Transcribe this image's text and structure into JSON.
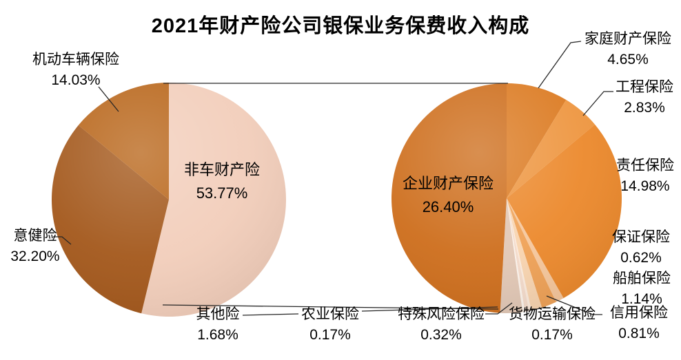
{
  "title": "2021年财产险公司银保业务保费收入构成",
  "chart_data": {
    "type": "pie",
    "subtype": "pie-of-pie",
    "title": "2021年财产险公司银保业务保费收入构成",
    "unit": "%",
    "legend": "none",
    "start_angle": "12-oclock, clockwise",
    "main_pie": {
      "slices": [
        {
          "key": "non-auto-property",
          "label": "非车财产险",
          "value": 53.77,
          "pct": "53.77%",
          "color": "#F2CEBB"
        },
        {
          "key": "accident-health",
          "label": "意健险",
          "value": 32.2,
          "pct": "32.20%",
          "color": "#A4591D"
        },
        {
          "key": "motor-vehicle",
          "label": "机动车辆保险",
          "value": 14.03,
          "pct": "14.03%",
          "color": "#B9671C"
        }
      ]
    },
    "secondary_pie": {
      "represents": "非车财产险",
      "total": 53.77,
      "slices": [
        {
          "key": "home-property",
          "label": "家庭财产保险",
          "value": 4.65,
          "pct": "4.65%",
          "color": "#DC7C24"
        },
        {
          "key": "engineering",
          "label": "工程保险",
          "value": 2.83,
          "pct": "2.83%",
          "color": "#EE9742"
        },
        {
          "key": "liability",
          "label": "责任保险",
          "value": 14.98,
          "pct": "14.98%",
          "color": "#EC8A2E"
        },
        {
          "key": "guarantee",
          "label": "保证保险",
          "value": 0.62,
          "pct": "0.62%",
          "color": "#F6C79C"
        },
        {
          "key": "ship",
          "label": "船舶保险",
          "value": 1.14,
          "pct": "1.14%",
          "color": "#EFA258"
        },
        {
          "key": "credit",
          "label": "信用保险",
          "value": 0.81,
          "pct": "0.81%",
          "color": "#F8D4B0"
        },
        {
          "key": "cargo-transport",
          "label": "货物运输保险",
          "value": 0.17,
          "pct": "0.17%",
          "color": "#FBEADC"
        },
        {
          "key": "special-risk",
          "label": "特殊风险保险",
          "value": 0.32,
          "pct": "0.32%",
          "color": "#F4DBCB"
        },
        {
          "key": "agriculture",
          "label": "农业保险",
          "value": 0.17,
          "pct": "0.17%",
          "color": "#FCF3EB"
        },
        {
          "key": "other",
          "label": "其他险",
          "value": 1.68,
          "pct": "1.68%",
          "color": "#E2C8B6"
        },
        {
          "key": "enterprise-property",
          "label": "企业财产保险",
          "value": 26.4,
          "pct": "26.40%",
          "color": "#CE6F1E"
        }
      ]
    }
  }
}
